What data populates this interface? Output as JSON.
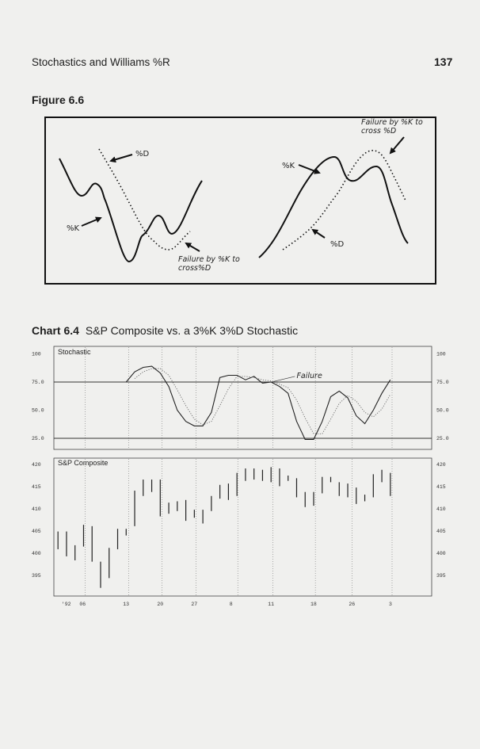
{
  "header": {
    "running_head": "Stochastics and Williams %R",
    "page_number": "137"
  },
  "figure": {
    "title": "Figure 6.6",
    "labels": {
      "d_left": "%D",
      "k_left": "%K",
      "failure_left_1": "Failure by %K to",
      "failure_left_2": "cross%D",
      "failure_right_1": "Failure by %K to",
      "failure_right_2": "cross %D",
      "k_right": "%K",
      "d_right": "%D"
    }
  },
  "chart": {
    "number": "Chart 6.4",
    "title": "S&P Composite vs. a 3%K 3%D Stochastic"
  },
  "chart_data": [
    {
      "type": "line",
      "title": "Stochastic",
      "annotation": "Failure",
      "x_unit": "trading day index",
      "ylim": [
        0,
        100
      ],
      "yticks": [
        "100",
        "75.0",
        "50.0",
        "25.0"
      ],
      "ytick_values": [
        100,
        75,
        50,
        25
      ],
      "reference_lines": [
        75,
        25
      ],
      "series": [
        {
          "style": "solid",
          "x_start": 8,
          "values": [
            75,
            84,
            88,
            89,
            83,
            71,
            50,
            40,
            36,
            36,
            48,
            79,
            81,
            81,
            77,
            80,
            74,
            75,
            71,
            65,
            40,
            24,
            24,
            40,
            62,
            67,
            61,
            45,
            38,
            50,
            65,
            77
          ]
        },
        {
          "style": "dotted",
          "x_start": 9,
          "values": [
            78,
            84,
            87,
            87,
            81,
            68,
            54,
            42,
            37,
            40,
            54,
            69,
            80,
            80,
            79,
            77,
            76,
            73,
            70,
            59,
            43,
            29,
            29,
            42,
            56,
            63,
            58,
            48,
            44,
            51,
            64
          ]
        }
      ]
    },
    {
      "type": "ohlc",
      "title": "S&P Composite",
      "ylim": [
        392,
        421
      ],
      "yticks": [
        "420",
        "415",
        "410",
        "405",
        "400",
        "395"
      ],
      "ytick_values": [
        420,
        415,
        410,
        405,
        400,
        395
      ],
      "xticks": [
        {
          "label": "'92",
          "x": 0.8
        },
        {
          "label": "06",
          "x": 2.9
        },
        {
          "label": "13",
          "x": 8
        },
        {
          "label": "20",
          "x": 12
        },
        {
          "label": "27",
          "x": 16
        },
        {
          "label": "8",
          "x": 20.5
        },
        {
          "label": "11",
          "x": 25
        },
        {
          "label": "18",
          "x": 30
        },
        {
          "label": "26",
          "x": 34.5
        },
        {
          "label": "3",
          "x": 39.2
        }
      ],
      "week_lines": [
        3.2,
        8.3,
        12.2,
        16.2,
        21.1,
        25.2,
        30.2,
        34.5,
        39.2
      ],
      "bars": [
        [
          404.9,
          400.9
        ],
        [
          404.9,
          399.3
        ],
        [
          401.8,
          398.4
        ],
        [
          406.4,
          401.5
        ],
        [
          406.1,
          398.1
        ],
        [
          398.1,
          392.2
        ],
        [
          401.2,
          394.4
        ],
        [
          405.5,
          400.9
        ],
        [
          405.5,
          404.0
        ],
        [
          414.1,
          406.1
        ],
        [
          416.6,
          412.9
        ],
        [
          416.6,
          413.8
        ],
        [
          416.6,
          408.3
        ],
        [
          411.4,
          408.9
        ],
        [
          411.7,
          409.5
        ],
        [
          412.0,
          407.3
        ],
        [
          409.8,
          408.0
        ],
        [
          409.8,
          406.7
        ],
        [
          412.9,
          409.5
        ],
        [
          415.4,
          412.3
        ],
        [
          415.7,
          412.0
        ],
        [
          418.1,
          412.9
        ],
        [
          419.1,
          416.3
        ],
        [
          419.1,
          416.6
        ],
        [
          418.8,
          416.3
        ],
        [
          419.4,
          416.0
        ],
        [
          419.1,
          415.1
        ],
        [
          417.5,
          416.3
        ],
        [
          416.9,
          412.6
        ],
        [
          413.8,
          410.4
        ],
        [
          413.8,
          410.7
        ],
        [
          417.2,
          413.5
        ],
        [
          417.2,
          416.0
        ],
        [
          416.0,
          412.9
        ],
        [
          415.7,
          412.6
        ],
        [
          414.8,
          411.1
        ],
        [
          413.2,
          411.7
        ],
        [
          417.8,
          412.6
        ],
        [
          418.8,
          416.0
        ],
        [
          418.1,
          412.9
        ]
      ]
    }
  ]
}
